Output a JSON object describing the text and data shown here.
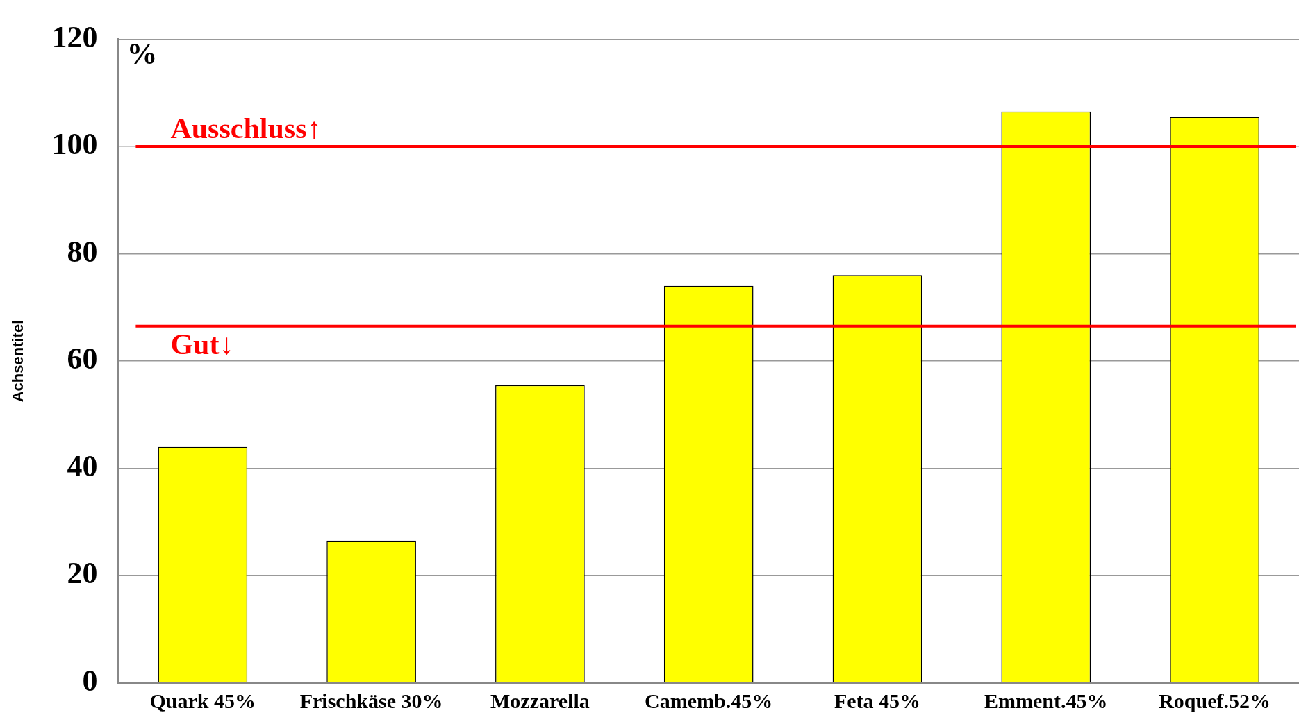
{
  "chart_data": {
    "type": "bar",
    "ylabel": "Achsentitel",
    "categories": [
      "Quark 45%",
      "Frischkäse 30%",
      "Mozzarella",
      "Camemb.45%",
      "Feta 45%",
      "Emment.45%",
      "Roquef.52%"
    ],
    "values": [
      44,
      26.5,
      55.5,
      74,
      76,
      106.5,
      105.5
    ],
    "color": "#ffff00",
    "ylim": [
      0,
      120
    ],
    "yticks": [
      0,
      20,
      40,
      60,
      80,
      100,
      120
    ],
    "grid": "y",
    "ref_lines": [
      {
        "axis": "y",
        "value": 100,
        "label": "Ausschluss↑",
        "color": "#ff0000"
      },
      {
        "axis": "y",
        "value": 66.5,
        "label": "Gut↓",
        "color": "#ff0000"
      }
    ],
    "annotations": [
      "%"
    ]
  }
}
